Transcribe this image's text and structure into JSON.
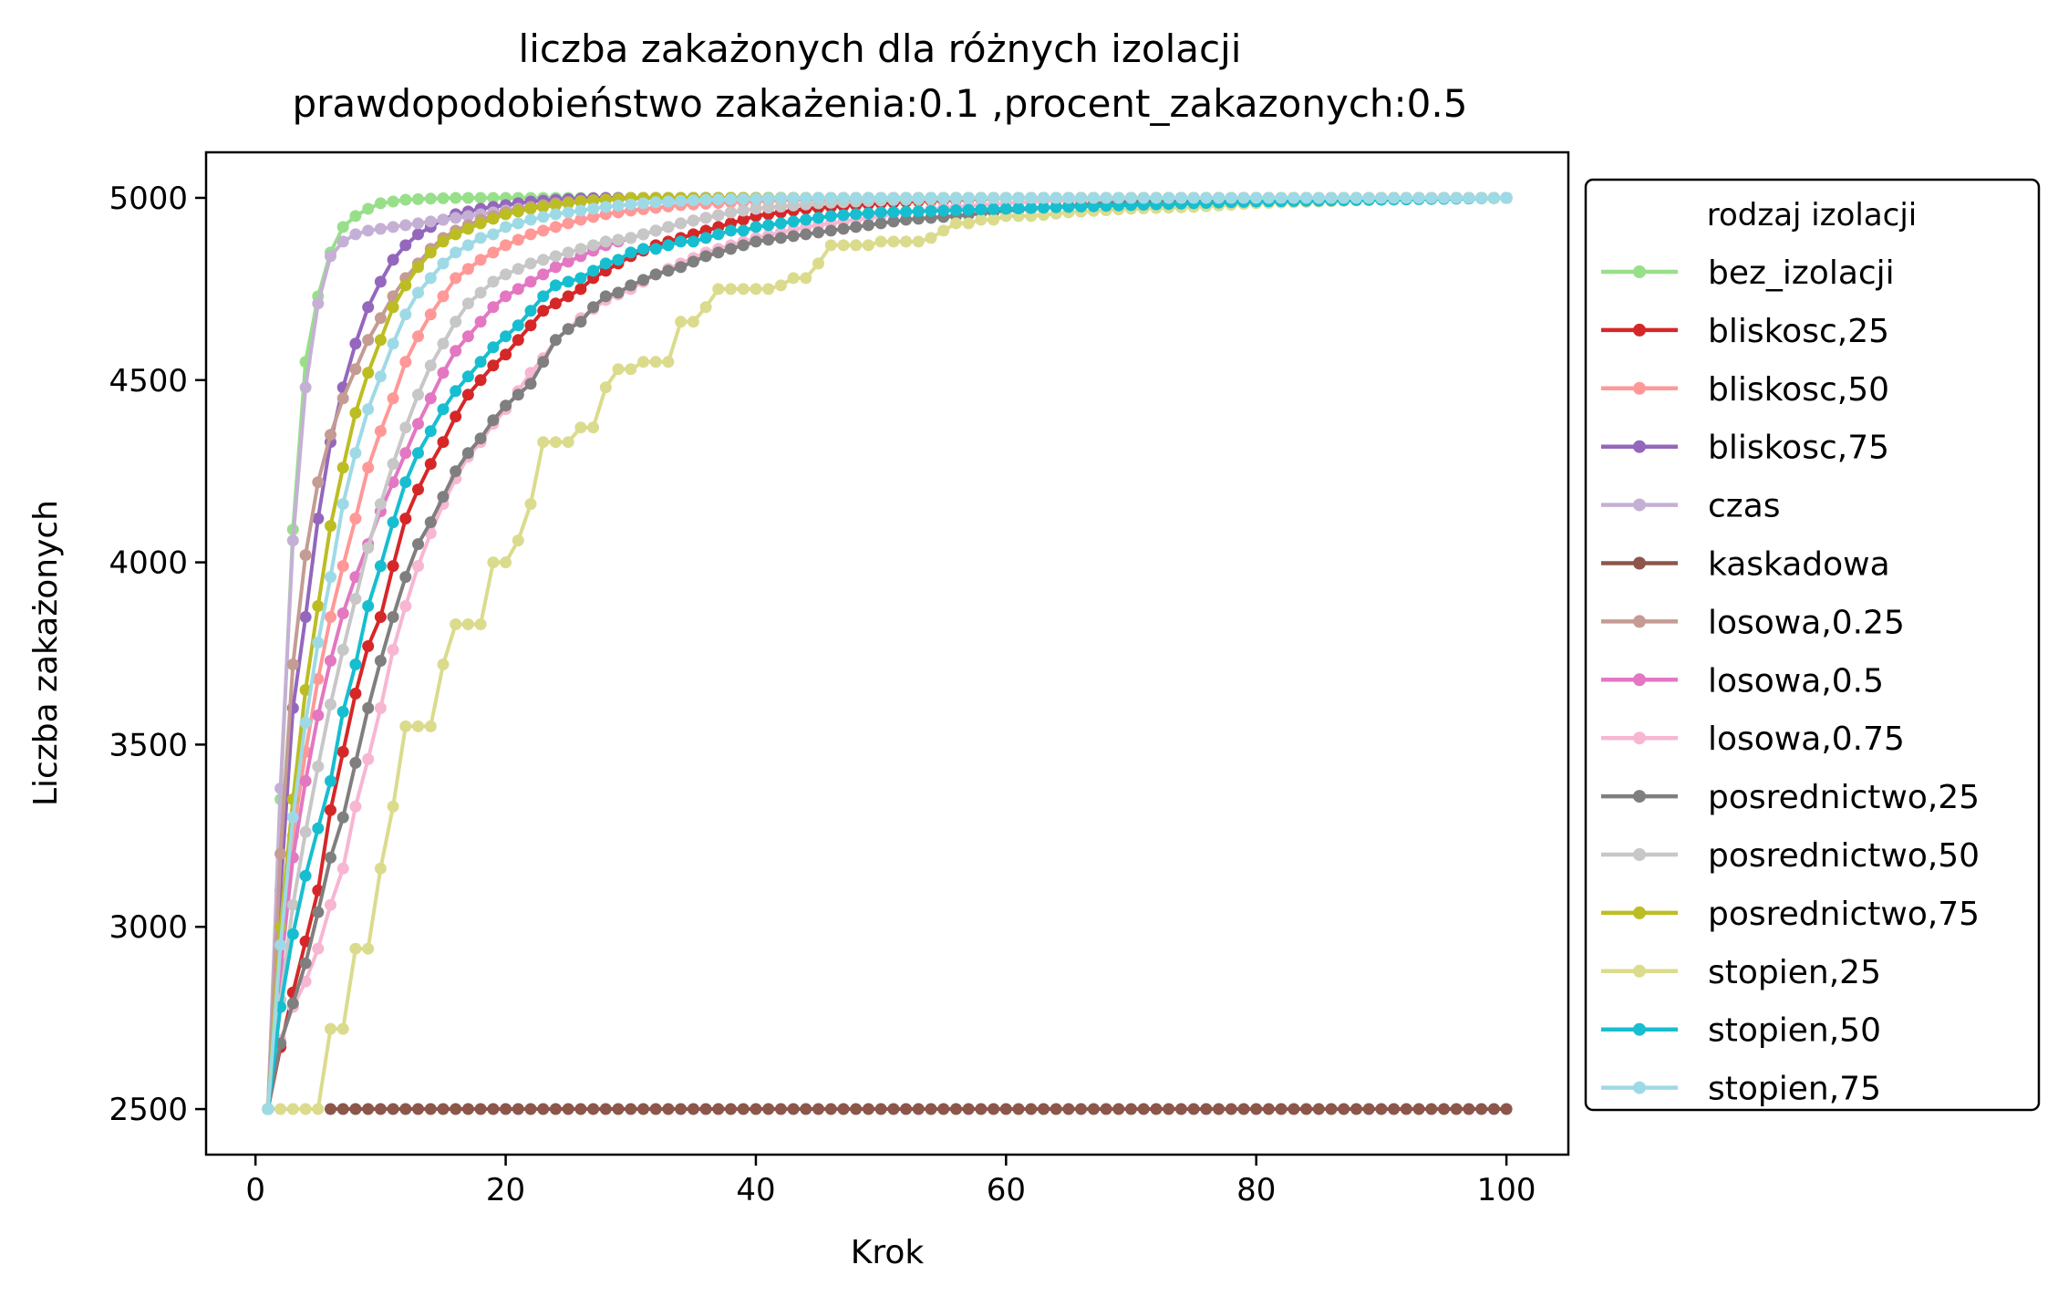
{
  "chart_data": {
    "type": "line",
    "title": "liczba zakażonych dla różnych izolacji",
    "subtitle": "prawdopodobieństwo zakażenia:0.1 ,procent_zakazonych:0.5",
    "xlabel": "Krok",
    "ylabel": "Liczba zakażonych",
    "xlim": [
      -3.95,
      104.95
    ],
    "ylim": [
      2375,
      5125
    ],
    "x_ticks": [
      "0",
      "20",
      "40",
      "60",
      "80",
      "100"
    ],
    "y_ticks": [
      "2500",
      "3000",
      "3500",
      "4000",
      "4500",
      "5000"
    ],
    "x_tick_values": [
      0,
      20,
      40,
      60,
      80,
      100
    ],
    "y_tick_values": [
      2500,
      3000,
      3500,
      4000,
      4500,
      5000
    ],
    "grid": false,
    "legend": {
      "title": "rodzaj izolacji",
      "placement": "outside-right"
    },
    "series": [
      {
        "name": "bez_izolacji",
        "color": "#98df8a",
        "x": [
          1,
          2,
          3,
          4,
          5,
          6,
          7,
          8,
          9,
          10,
          12,
          14,
          16,
          20,
          25,
          30,
          100
        ],
        "y": [
          2500,
          3350,
          4090,
          4550,
          4730,
          4850,
          4920,
          4950,
          4970,
          4985,
          4995,
          4998,
          5000,
          5000,
          5000,
          5000,
          5000
        ]
      },
      {
        "name": "bliskosc,25",
        "color": "#d62728",
        "x": [
          1,
          2,
          3,
          4,
          5,
          6,
          7,
          8,
          9,
          10,
          11,
          12,
          13,
          14,
          15,
          16,
          17,
          18,
          19,
          20,
          21,
          22,
          23,
          24,
          25,
          26,
          27,
          28,
          29,
          30,
          32,
          34,
          36,
          38,
          40,
          44,
          48,
          52,
          56,
          60,
          100
        ],
        "y": [
          2500,
          2670,
          2820,
          2960,
          3100,
          3320,
          3480,
          3640,
          3770,
          3850,
          3990,
          4120,
          4200,
          4270,
          4330,
          4400,
          4460,
          4500,
          4540,
          4570,
          4610,
          4650,
          4690,
          4710,
          4730,
          4750,
          4780,
          4800,
          4820,
          4840,
          4870,
          4890,
          4910,
          4930,
          4950,
          4970,
          4980,
          4990,
          4995,
          5000,
          5000
        ]
      },
      {
        "name": "bliskosc,50",
        "color": "#ff9896",
        "x": [
          1,
          2,
          3,
          4,
          5,
          6,
          7,
          8,
          9,
          10,
          11,
          12,
          13,
          14,
          15,
          16,
          18,
          20,
          22,
          24,
          26,
          28,
          30,
          34,
          38,
          42,
          46,
          50,
          100
        ],
        "y": [
          2500,
          2900,
          3250,
          3480,
          3680,
          3850,
          3990,
          4120,
          4260,
          4360,
          4450,
          4550,
          4620,
          4680,
          4730,
          4780,
          4830,
          4870,
          4900,
          4920,
          4940,
          4955,
          4965,
          4980,
          4988,
          4994,
          4997,
          5000,
          5000
        ]
      },
      {
        "name": "bliskosc,75",
        "color": "#9467bd",
        "x": [
          1,
          2,
          3,
          4,
          5,
          6,
          7,
          8,
          9,
          10,
          11,
          12,
          13,
          14,
          15,
          16,
          18,
          20,
          22,
          24,
          26,
          28,
          30,
          100
        ],
        "y": [
          2500,
          3100,
          3600,
          3850,
          4120,
          4330,
          4480,
          4600,
          4700,
          4770,
          4830,
          4870,
          4900,
          4920,
          4940,
          4955,
          4970,
          4980,
          4990,
          4995,
          4998,
          5000,
          5000,
          5000
        ]
      },
      {
        "name": "czas",
        "color": "#c5b0d5",
        "x": [
          1,
          2,
          3,
          4,
          5,
          6,
          7,
          8,
          9,
          10,
          11,
          12,
          13,
          14,
          15,
          16,
          18,
          20,
          22,
          24,
          26,
          28,
          30,
          35,
          40,
          100
        ],
        "y": [
          2500,
          3380,
          4060,
          4480,
          4710,
          4840,
          4880,
          4900,
          4910,
          4915,
          4920,
          4925,
          4930,
          4935,
          4940,
          4945,
          4955,
          4965,
          4975,
          4982,
          4990,
          4995,
          4998,
          5000,
          5000,
          5000
        ]
      },
      {
        "name": "kaskadowa",
        "color": "#8c564b",
        "x": [
          6,
          100
        ],
        "y": [
          2500,
          2500
        ]
      },
      {
        "name": "losowa,0.25",
        "color": "#c49c94",
        "x": [
          1,
          2,
          3,
          4,
          5,
          6,
          7,
          8,
          9,
          10,
          11,
          12,
          13,
          14,
          15,
          16,
          18,
          20,
          22,
          24,
          26,
          28,
          30,
          35,
          40,
          100
        ],
        "y": [
          2500,
          3200,
          3720,
          4020,
          4220,
          4350,
          4450,
          4530,
          4610,
          4670,
          4730,
          4780,
          4820,
          4860,
          4890,
          4910,
          4940,
          4960,
          4975,
          4985,
          4992,
          4996,
          5000,
          5000,
          5000,
          5000
        ]
      },
      {
        "name": "losowa,0.5",
        "color": "#e377c2",
        "x": [
          1,
          2,
          3,
          4,
          5,
          6,
          7,
          8,
          9,
          10,
          11,
          12,
          13,
          14,
          15,
          16,
          17,
          18,
          19,
          20,
          22,
          24,
          26,
          28,
          30,
          32,
          34,
          36,
          38,
          40,
          45,
          50,
          55,
          100
        ],
        "y": [
          2500,
          2880,
          3190,
          3400,
          3580,
          3730,
          3860,
          3960,
          4050,
          4140,
          4220,
          4300,
          4380,
          4450,
          4520,
          4580,
          4620,
          4660,
          4700,
          4730,
          4770,
          4810,
          4840,
          4870,
          4890,
          4910,
          4930,
          4945,
          4960,
          4970,
          4985,
          4993,
          5000,
          5000
        ]
      },
      {
        "name": "losowa,0.75",
        "color": "#f7b6d2",
        "x": [
          1,
          2,
          3,
          4,
          5,
          6,
          7,
          8,
          9,
          10,
          11,
          12,
          13,
          14,
          15,
          16,
          17,
          18,
          19,
          20,
          21,
          22,
          23,
          24,
          25,
          26,
          28,
          30,
          32,
          34,
          36,
          38,
          40,
          44,
          48,
          52,
          56,
          60,
          64,
          100
        ],
        "y": [
          2500,
          2690,
          2780,
          2850,
          2940,
          3060,
          3160,
          3330,
          3460,
          3600,
          3760,
          3880,
          3990,
          4080,
          4160,
          4230,
          4290,
          4330,
          4380,
          4420,
          4470,
          4520,
          4560,
          4610,
          4640,
          4670,
          4720,
          4750,
          4790,
          4820,
          4850,
          4870,
          4890,
          4920,
          4940,
          4960,
          4975,
          4985,
          4993,
          5000
        ]
      },
      {
        "name": "posrednictwo,25",
        "color": "#7f7f7f",
        "x": [
          1,
          2,
          3,
          4,
          5,
          6,
          7,
          8,
          9,
          10,
          11,
          12,
          13,
          14,
          15,
          16,
          17,
          18,
          19,
          20,
          21,
          22,
          23,
          24,
          25,
          26,
          27,
          28,
          29,
          30,
          32,
          34,
          36,
          38,
          40,
          44,
          48,
          52,
          56,
          60,
          70,
          100
        ],
        "y": [
          2500,
          2680,
          2790,
          2900,
          3040,
          3190,
          3300,
          3450,
          3600,
          3730,
          3850,
          3960,
          4050,
          4110,
          4180,
          4250,
          4300,
          4340,
          4390,
          4430,
          4460,
          4490,
          4550,
          4610,
          4640,
          4660,
          4700,
          4730,
          4740,
          4760,
          4790,
          4810,
          4840,
          4860,
          4880,
          4900,
          4920,
          4940,
          4950,
          4965,
          4990,
          5000
        ]
      },
      {
        "name": "posrednictwo,50",
        "color": "#c7c7c7",
        "x": [
          1,
          2,
          3,
          4,
          5,
          6,
          7,
          8,
          9,
          10,
          11,
          12,
          13,
          14,
          15,
          16,
          17,
          18,
          19,
          20,
          22,
          24,
          26,
          28,
          30,
          32,
          34,
          36,
          38,
          40,
          45,
          50,
          55,
          60,
          100
        ],
        "y": [
          2500,
          2800,
          3060,
          3260,
          3440,
          3610,
          3760,
          3900,
          4040,
          4160,
          4270,
          4370,
          4460,
          4540,
          4600,
          4660,
          4710,
          4740,
          4770,
          4790,
          4820,
          4840,
          4860,
          4880,
          4890,
          4910,
          4930,
          4945,
          4960,
          4970,
          4985,
          4993,
          4997,
          5000,
          5000
        ]
      },
      {
        "name": "posrednictwo,75",
        "color": "#bcbd22",
        "x": [
          1,
          2,
          3,
          4,
          5,
          6,
          7,
          8,
          9,
          10,
          11,
          12,
          13,
          14,
          15,
          16,
          18,
          20,
          22,
          24,
          26,
          28,
          30,
          35,
          40,
          100
        ],
        "y": [
          2500,
          3000,
          3350,
          3650,
          3880,
          4100,
          4260,
          4410,
          4520,
          4610,
          4700,
          4760,
          4810,
          4850,
          4880,
          4900,
          4930,
          4955,
          4970,
          4980,
          4990,
          4995,
          5000,
          5000,
          5000,
          5000
        ]
      },
      {
        "name": "stopien,25",
        "color": "#dbdb8d",
        "x": [
          1,
          2,
          3,
          4,
          5,
          6,
          7,
          8,
          9,
          10,
          11,
          12,
          13,
          14,
          15,
          16,
          17,
          18,
          19,
          20,
          21,
          22,
          23,
          24,
          25,
          26,
          27,
          28,
          29,
          30,
          31,
          32,
          33,
          34,
          35,
          36,
          37,
          38,
          39,
          40,
          41,
          42,
          43,
          44,
          45,
          46,
          47,
          48,
          49,
          50,
          51,
          52,
          53,
          54,
          55,
          56,
          57,
          58,
          59,
          60,
          62,
          65,
          70,
          75,
          80,
          85,
          90,
          100
        ],
        "y": [
          2500,
          2500,
          2500,
          2500,
          2500,
          2720,
          2720,
          2940,
          2940,
          3160,
          3330,
          3550,
          3550,
          3550,
          3720,
          3830,
          3830,
          3830,
          4000,
          4000,
          4060,
          4160,
          4330,
          4330,
          4330,
          4370,
          4370,
          4480,
          4530,
          4530,
          4550,
          4550,
          4550,
          4660,
          4660,
          4700,
          4750,
          4750,
          4750,
          4750,
          4750,
          4760,
          4780,
          4780,
          4820,
          4870,
          4870,
          4870,
          4870,
          4880,
          4880,
          4880,
          4880,
          4890,
          4910,
          4930,
          4930,
          4940,
          4940,
          4950,
          4950,
          4960,
          4970,
          4975,
          4985,
          4990,
          4995,
          5000
        ]
      },
      {
        "name": "stopien,50",
        "color": "#17becf",
        "x": [
          1,
          2,
          3,
          4,
          5,
          6,
          7,
          8,
          9,
          10,
          11,
          12,
          13,
          14,
          15,
          16,
          17,
          18,
          19,
          20,
          21,
          22,
          23,
          24,
          25,
          26,
          27,
          28,
          29,
          30,
          31,
          32,
          33,
          34,
          35,
          36,
          37,
          38,
          39,
          40,
          42,
          44,
          46,
          48,
          50,
          55,
          60,
          65,
          70,
          75,
          80,
          100
        ],
        "y": [
          2500,
          2780,
          2980,
          3140,
          3270,
          3400,
          3590,
          3720,
          3880,
          3990,
          4110,
          4220,
          4300,
          4360,
          4420,
          4470,
          4510,
          4550,
          4590,
          4620,
          4650,
          4690,
          4730,
          4760,
          4770,
          4780,
          4800,
          4820,
          4830,
          4850,
          4860,
          4860,
          4870,
          4880,
          4880,
          4890,
          4900,
          4910,
          4910,
          4920,
          4930,
          4940,
          4950,
          4955,
          4960,
          4965,
          4970,
          4975,
          4980,
          4985,
          4990,
          5000
        ]
      },
      {
        "name": "stopien,75",
        "color": "#9edae5",
        "x": [
          1,
          2,
          3,
          4,
          5,
          6,
          7,
          8,
          9,
          10,
          11,
          12,
          13,
          14,
          15,
          16,
          17,
          18,
          19,
          20,
          22,
          24,
          26,
          28,
          30,
          32,
          34,
          36,
          40,
          45,
          50,
          55,
          60,
          100
        ],
        "y": [
          2500,
          2950,
          3300,
          3560,
          3780,
          3960,
          4160,
          4300,
          4420,
          4510,
          4600,
          4680,
          4740,
          4780,
          4820,
          4850,
          4870,
          4890,
          4900,
          4920,
          4940,
          4955,
          4965,
          4975,
          4982,
          4988,
          4992,
          4995,
          4998,
          5000,
          5000,
          5000,
          5000,
          5000
        ]
      }
    ]
  }
}
